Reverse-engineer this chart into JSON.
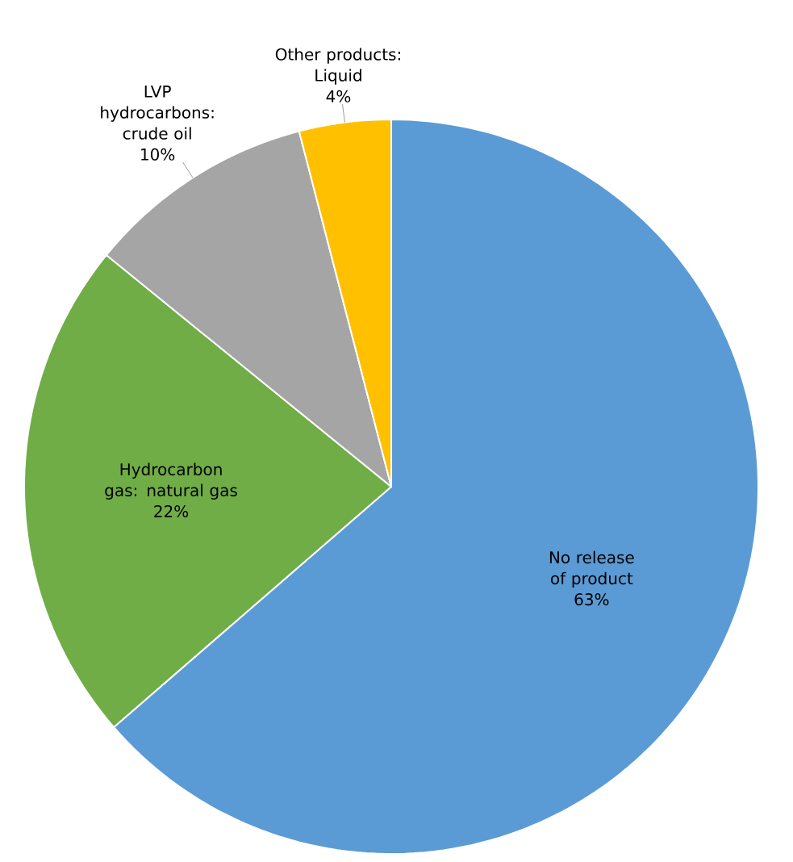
{
  "chart_data": {
    "type": "pie",
    "categories": [
      "No release of product",
      "Hydrocarbon gas: natural gas",
      "LVP hydrocarbons: crude oil",
      "Other products: Liquid"
    ],
    "values": [
      63,
      22,
      10,
      4
    ],
    "value_labels": [
      "63%",
      "22%",
      "10%",
      "4%"
    ],
    "colors": [
      "#5b9bd5",
      "#70ad47",
      "#a5a5a5",
      "#ffc000"
    ]
  }
}
